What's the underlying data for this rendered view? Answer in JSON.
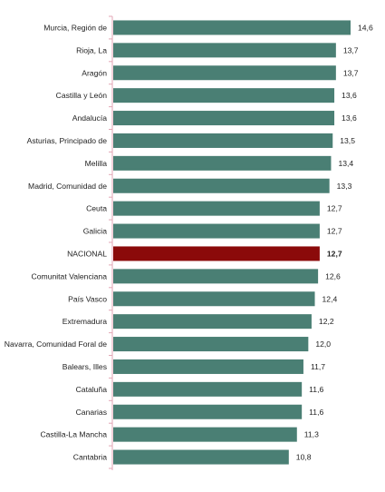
{
  "chart_data": {
    "type": "bar",
    "orientation": "horizontal",
    "categories": [
      "Murcia, Región de",
      "Rioja, La",
      "Aragón",
      "Castilla y León",
      "Andalucía",
      "Asturias, Principado de",
      "Melilla",
      "Madrid, Comunidad de",
      "Ceuta",
      "Galicia",
      "NACIONAL",
      "Comunitat Valenciana",
      "País Vasco",
      "Extremadura",
      "Navarra, Comunidad Foral de",
      "Balears, Illes",
      "Cataluña",
      "Canarias",
      "Castilla-La Mancha",
      "Cantabria"
    ],
    "values": [
      14.6,
      13.7,
      13.7,
      13.6,
      13.6,
      13.5,
      13.4,
      13.3,
      12.7,
      12.7,
      12.7,
      12.6,
      12.4,
      12.2,
      12.0,
      11.7,
      11.6,
      11.6,
      11.3,
      10.8
    ],
    "value_labels": [
      "14,6",
      "13,7",
      "13,7",
      "13,6",
      "13,6",
      "13,5",
      "13,4",
      "13,3",
      "12,7",
      "12,7",
      "12,7",
      "12,6",
      "12,4",
      "12,2",
      "12,0",
      "11,7",
      "11,6",
      "11,6",
      "11,3",
      "10,8"
    ],
    "highlight_category": "NACIONAL",
    "xlim": [
      0,
      14.6
    ],
    "grid": false,
    "legend": "none",
    "colors": {
      "bar": "#4a7f74",
      "highlight": "#8b0a0a",
      "axis": "#e3a6b5",
      "text": "#222222"
    }
  }
}
